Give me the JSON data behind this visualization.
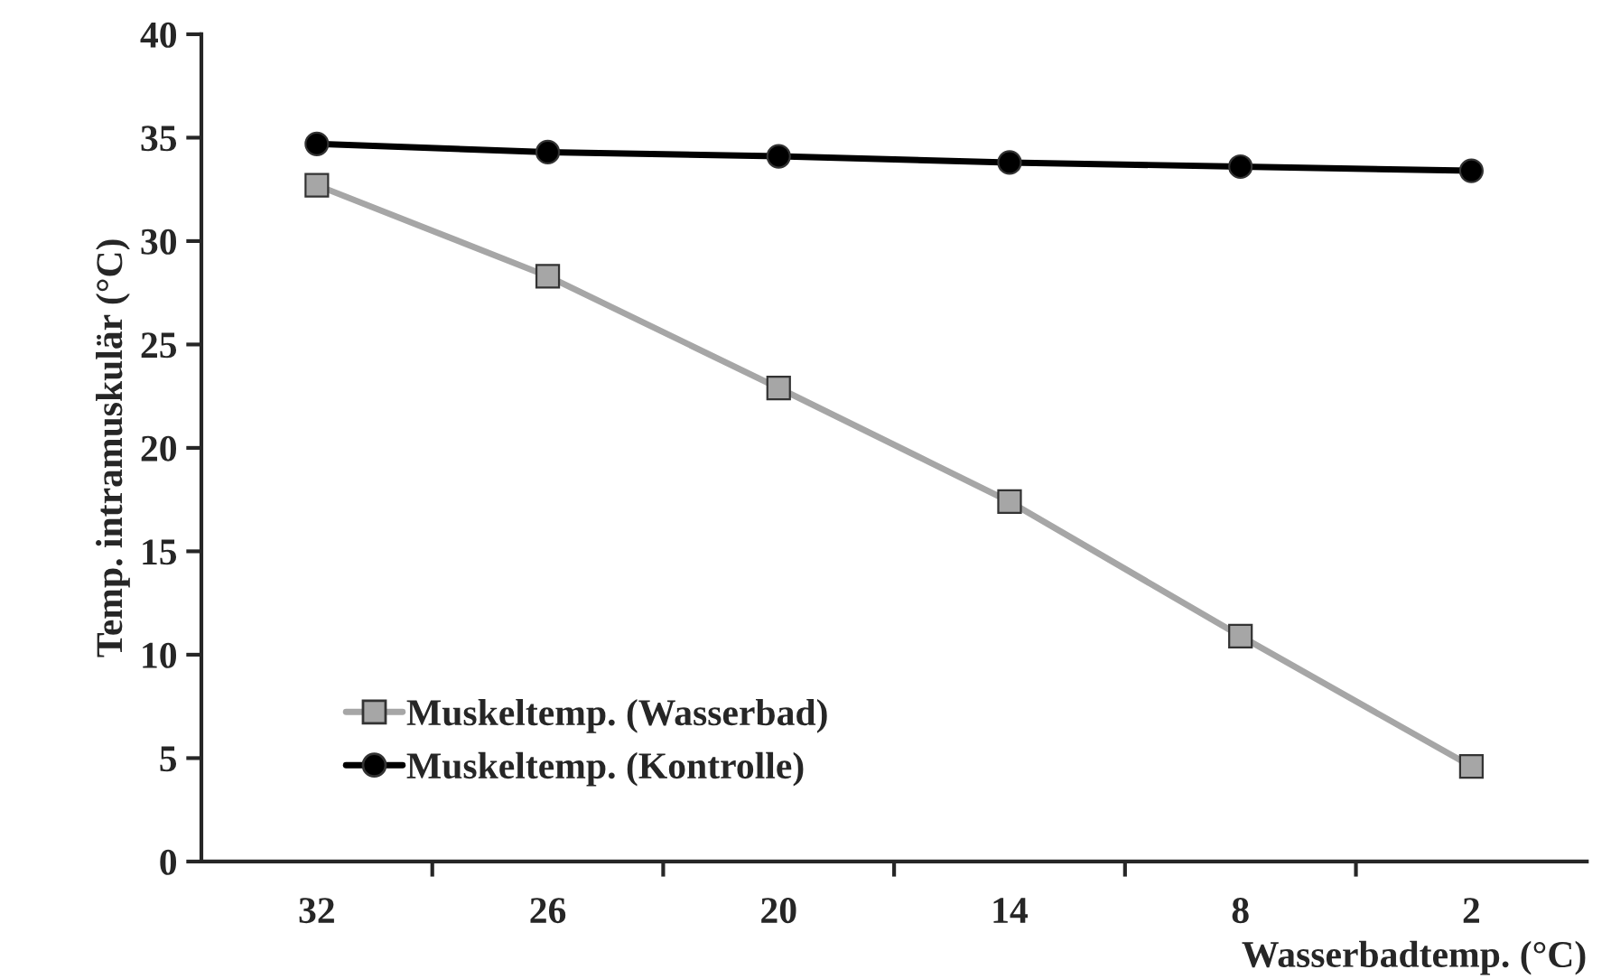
{
  "chart_data": {
    "type": "line",
    "xlabel": "Wasserbadtemp. (°C)",
    "ylabel": "Temp. intramuskulär (°C)",
    "categories": [
      "32",
      "26",
      "20",
      "14",
      "8",
      "2"
    ],
    "series": [
      {
        "name": "Muskeltemp. (Wasserbad)",
        "color": "#a6a6a6",
        "marker": "square",
        "values": [
          32.7,
          28.3,
          22.9,
          17.4,
          10.9,
          4.6
        ]
      },
      {
        "name": "Muskeltemp. (Kontrolle)",
        "color": "#000000",
        "marker": "circle",
        "values": [
          34.7,
          34.3,
          34.1,
          33.8,
          33.6,
          33.4
        ]
      }
    ],
    "ylim": [
      0,
      40
    ],
    "yticks": [
      0,
      5,
      10,
      15,
      20,
      25,
      30,
      35,
      40
    ],
    "grid": false,
    "legend": "bottom left",
    "line_style": "solid"
  }
}
